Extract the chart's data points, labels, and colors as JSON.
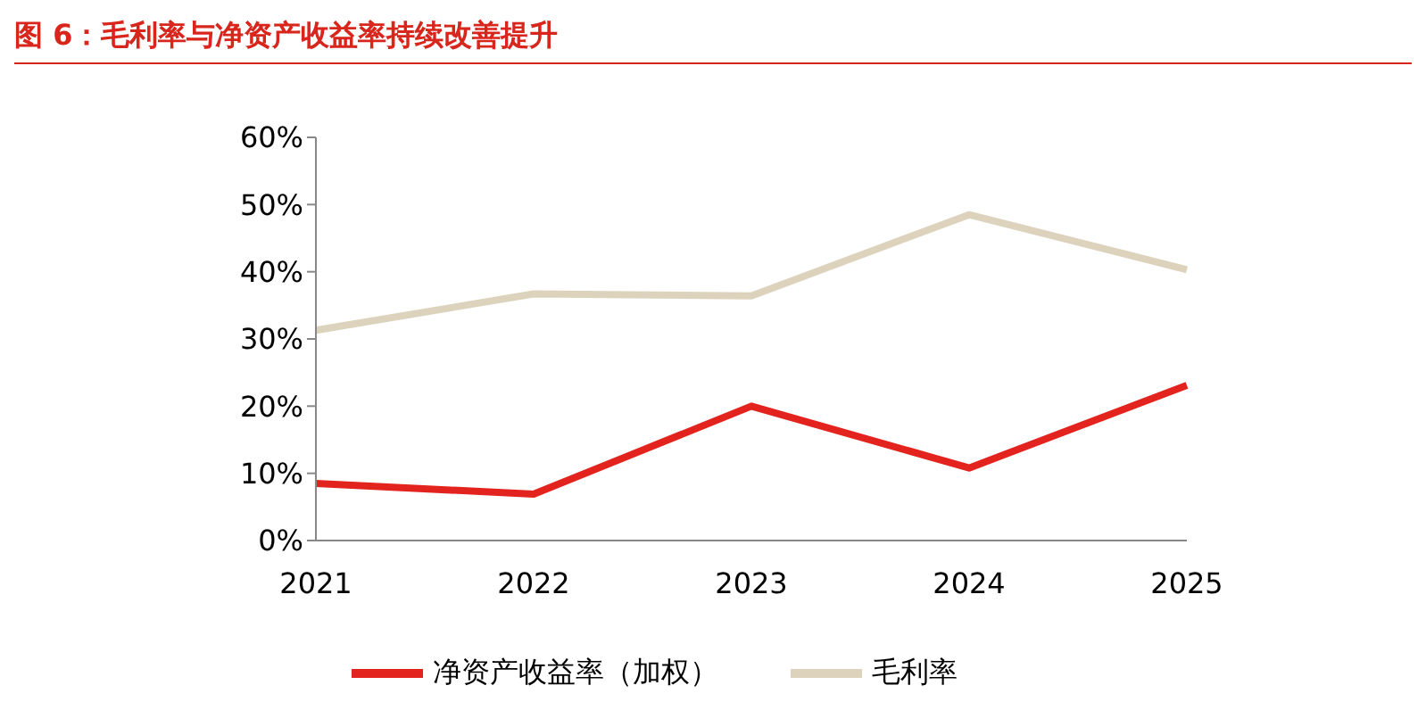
{
  "chart_data": {
    "type": "line",
    "title": "图 6：毛利率与净资产收益率持续改善提升",
    "categories": [
      "2021",
      "2022",
      "2023",
      "2024",
      "2025"
    ],
    "series": [
      {
        "name": "净资产收益率（加权）",
        "color": "#e3231e",
        "values": [
          8.5,
          6.9,
          20.0,
          10.8,
          23.1
        ]
      },
      {
        "name": "毛利率",
        "color": "#ddd3bd",
        "values": [
          31.3,
          36.7,
          36.4,
          48.5,
          40.3
        ]
      }
    ],
    "ylim": [
      0,
      60
    ],
    "yticks": [
      {
        "value": 0,
        "label": "0%"
      },
      {
        "value": 10,
        "label": "10%"
      },
      {
        "value": 20,
        "label": "20%"
      },
      {
        "value": 30,
        "label": "30%"
      },
      {
        "value": 40,
        "label": "40%"
      },
      {
        "value": 50,
        "label": "50%"
      },
      {
        "value": 60,
        "label": "60%"
      }
    ],
    "grid": false,
    "legend": "bottom",
    "marker": "none",
    "line_style": "solid"
  }
}
